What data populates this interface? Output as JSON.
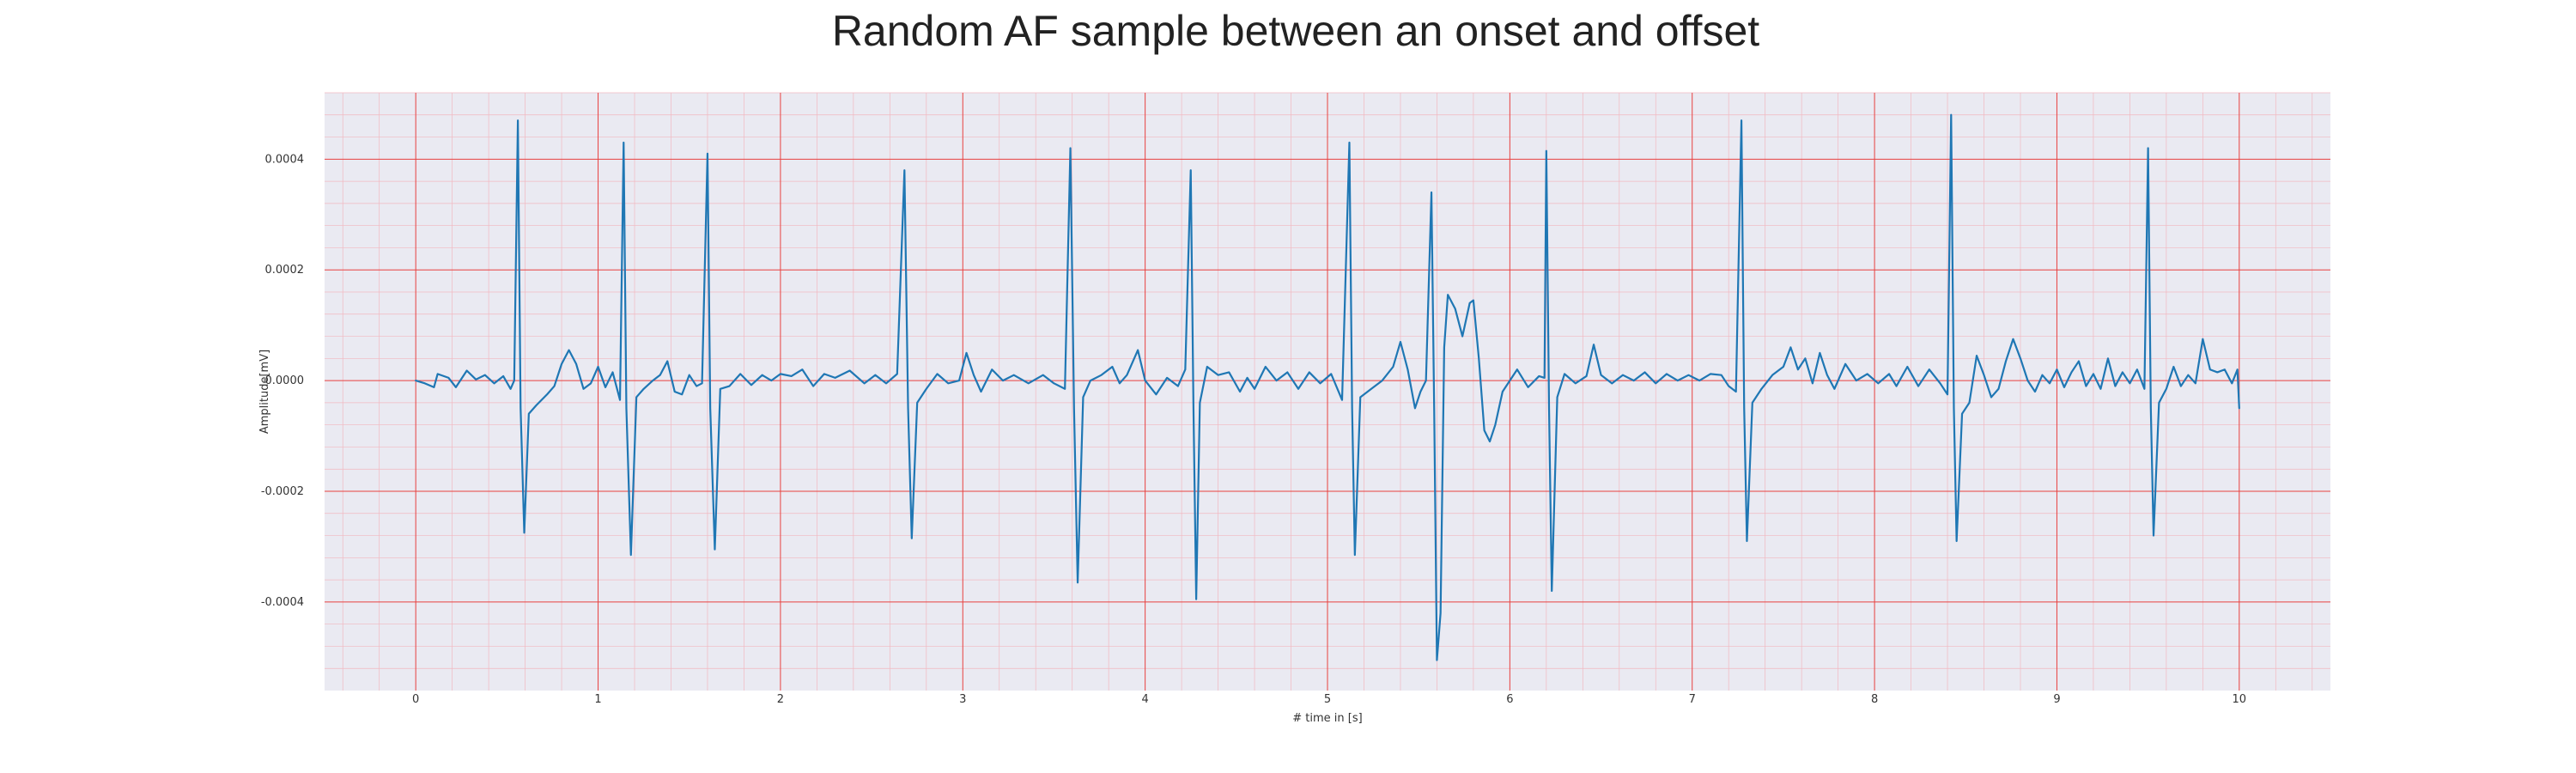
{
  "chart_data": {
    "type": "line",
    "title": "Random AF sample between an onset and offset",
    "xlabel": "# time in [s]",
    "ylabel": "Amplitude[mV]",
    "xlim": [
      -0.5,
      10.5
    ],
    "ylim": [
      -0.00056,
      0.00052
    ],
    "xticks": [
      0,
      1,
      2,
      3,
      4,
      5,
      6,
      7,
      8,
      9,
      10
    ],
    "xtick_labels": [
      "0",
      "1",
      "2",
      "3",
      "4",
      "5",
      "6",
      "7",
      "8",
      "9",
      "10"
    ],
    "yticks": [
      -0.0004,
      -0.0002,
      0.0,
      0.0002,
      0.0004
    ],
    "ytick_labels": [
      "-0.0004",
      "-0.0002",
      "0.0000",
      "0.0002",
      "0.0004"
    ],
    "grid": true,
    "grid_major_color": "#e8413f",
    "grid_minor_color": "#f2b8c0",
    "background_color": "#eaeaf2",
    "series": [
      {
        "color": "#1f77b4",
        "anchors": [
          [
            0.0,
            0.0
          ],
          [
            0.05,
            -5e-06
          ],
          [
            0.1,
            -1.2e-05
          ],
          [
            0.12,
            1.2e-05
          ],
          [
            0.18,
            5e-06
          ],
          [
            0.22,
            -1.2e-05
          ],
          [
            0.28,
            1.8e-05
          ],
          [
            0.33,
            2e-06
          ],
          [
            0.38,
            1e-05
          ],
          [
            0.43,
            -5e-06
          ],
          [
            0.48,
            8e-06
          ],
          [
            0.52,
            -1.5e-05
          ],
          [
            0.54,
            0.0
          ],
          [
            0.56,
            0.00047
          ],
          [
            0.575,
            -5e-05
          ],
          [
            0.595,
            -0.000275
          ],
          [
            0.62,
            -6e-05
          ],
          [
            0.66,
            -4.5e-05
          ],
          [
            0.72,
            -2.5e-05
          ],
          [
            0.76,
            -1e-05
          ],
          [
            0.8,
            3e-05
          ],
          [
            0.84,
            5.5e-05
          ],
          [
            0.88,
            3e-05
          ],
          [
            0.92,
            -1.5e-05
          ],
          [
            0.96,
            -5e-06
          ],
          [
            1.0,
            2.5e-05
          ],
          [
            1.04,
            -1.2e-05
          ],
          [
            1.08,
            1.5e-05
          ],
          [
            1.12,
            -3.5e-05
          ],
          [
            1.14,
            0.00043
          ],
          [
            1.155,
            -5e-05
          ],
          [
            1.18,
            -0.000315
          ],
          [
            1.21,
            -3e-05
          ],
          [
            1.25,
            -1.5e-05
          ],
          [
            1.3,
            0.0
          ],
          [
            1.34,
            1e-05
          ],
          [
            1.38,
            3.5e-05
          ],
          [
            1.42,
            -2e-05
          ],
          [
            1.46,
            -2.5e-05
          ],
          [
            1.5,
            1e-05
          ],
          [
            1.54,
            -1e-05
          ],
          [
            1.57,
            -5e-06
          ],
          [
            1.6,
            0.00041
          ],
          [
            1.615,
            -5e-05
          ],
          [
            1.64,
            -0.000305
          ],
          [
            1.67,
            -1.5e-05
          ],
          [
            1.72,
            -1e-05
          ],
          [
            1.78,
            1.2e-05
          ],
          [
            1.84,
            -8e-06
          ],
          [
            1.9,
            1e-05
          ],
          [
            1.95,
            0.0
          ],
          [
            2.0,
            1.2e-05
          ],
          [
            2.06,
            8e-06
          ],
          [
            2.12,
            2e-05
          ],
          [
            2.18,
            -1e-05
          ],
          [
            2.24,
            1.2e-05
          ],
          [
            2.3,
            5e-06
          ],
          [
            2.38,
            1.8e-05
          ],
          [
            2.46,
            -5e-06
          ],
          [
            2.52,
            1e-05
          ],
          [
            2.58,
            -5e-06
          ],
          [
            2.64,
            1.2e-05
          ],
          [
            2.68,
            0.00038
          ],
          [
            2.7,
            -5e-05
          ],
          [
            2.72,
            -0.000285
          ],
          [
            2.75,
            -4e-05
          ],
          [
            2.8,
            -1.5e-05
          ],
          [
            2.86,
            1.2e-05
          ],
          [
            2.92,
            -5e-06
          ],
          [
            2.98,
            0.0
          ],
          [
            3.02,
            5e-05
          ],
          [
            3.06,
            1e-05
          ],
          [
            3.1,
            -2e-05
          ],
          [
            3.16,
            2e-05
          ],
          [
            3.22,
            0.0
          ],
          [
            3.28,
            1e-05
          ],
          [
            3.36,
            -5e-06
          ],
          [
            3.44,
            1e-05
          ],
          [
            3.5,
            -5e-06
          ],
          [
            3.56,
            -1.5e-05
          ],
          [
            3.59,
            0.00042
          ],
          [
            3.61,
            -5e-05
          ],
          [
            3.63,
            -0.000365
          ],
          [
            3.66,
            -3e-05
          ],
          [
            3.7,
            0.0
          ],
          [
            3.76,
            1e-05
          ],
          [
            3.82,
            2.5e-05
          ],
          [
            3.86,
            -5e-06
          ],
          [
            3.9,
            1e-05
          ],
          [
            3.96,
            5.5e-05
          ],
          [
            4.0,
            0.0
          ],
          [
            4.06,
            -2.5e-05
          ],
          [
            4.12,
            5e-06
          ],
          [
            4.18,
            -1e-05
          ],
          [
            4.22,
            2e-05
          ],
          [
            4.25,
            0.00038
          ],
          [
            4.265,
            -5e-05
          ],
          [
            4.28,
            -0.000395
          ],
          [
            4.3,
            -4e-05
          ],
          [
            4.34,
            2.5e-05
          ],
          [
            4.4,
            1e-05
          ],
          [
            4.46,
            1.5e-05
          ],
          [
            4.52,
            -2e-05
          ],
          [
            4.56,
            5e-06
          ],
          [
            4.6,
            -1.5e-05
          ],
          [
            4.66,
            2.5e-05
          ],
          [
            4.72,
            0.0
          ],
          [
            4.78,
            1.5e-05
          ],
          [
            4.84,
            -1.5e-05
          ],
          [
            4.9,
            1.5e-05
          ],
          [
            4.96,
            -5e-06
          ],
          [
            5.02,
            1.2e-05
          ],
          [
            5.08,
            -3.5e-05
          ],
          [
            5.12,
            0.00043
          ],
          [
            5.135,
            -5e-05
          ],
          [
            5.15,
            -0.000315
          ],
          [
            5.18,
            -3e-05
          ],
          [
            5.24,
            -1.5e-05
          ],
          [
            5.3,
            0.0
          ],
          [
            5.36,
            2.5e-05
          ],
          [
            5.4,
            7e-05
          ],
          [
            5.44,
            2e-05
          ],
          [
            5.48,
            -5e-05
          ],
          [
            5.51,
            -2e-05
          ],
          [
            5.54,
            0.0
          ],
          [
            5.57,
            0.00034
          ],
          [
            5.585,
            -5e-05
          ],
          [
            5.6,
            -0.000505
          ],
          [
            5.62,
            -0.00042
          ],
          [
            5.64,
            6e-05
          ],
          [
            5.66,
            0.000155
          ],
          [
            5.7,
            0.00013
          ],
          [
            5.74,
            8e-05
          ],
          [
            5.78,
            0.00014
          ],
          [
            5.8,
            0.000145
          ],
          [
            5.83,
            4e-05
          ],
          [
            5.86,
            -9e-05
          ],
          [
            5.89,
            -0.00011
          ],
          [
            5.92,
            -8e-05
          ],
          [
            5.96,
            -2e-05
          ],
          [
            6.0,
            0.0
          ],
          [
            6.04,
            2e-05
          ],
          [
            6.1,
            -1.2e-05
          ],
          [
            6.16,
            8e-06
          ],
          [
            6.19,
            5e-06
          ],
          [
            6.2,
            0.000415
          ],
          [
            6.215,
            -5e-05
          ],
          [
            6.23,
            -0.00038
          ],
          [
            6.26,
            -3e-05
          ],
          [
            6.3,
            1.2e-05
          ],
          [
            6.36,
            -5e-06
          ],
          [
            6.42,
            8e-06
          ],
          [
            6.46,
            6.5e-05
          ],
          [
            6.5,
            1e-05
          ],
          [
            6.56,
            -5e-06
          ],
          [
            6.62,
            1e-05
          ],
          [
            6.68,
            0.0
          ],
          [
            6.74,
            1.5e-05
          ],
          [
            6.8,
            -5e-06
          ],
          [
            6.86,
            1.2e-05
          ],
          [
            6.92,
            0.0
          ],
          [
            6.98,
            1e-05
          ],
          [
            7.04,
            0.0
          ],
          [
            7.1,
            1.2e-05
          ],
          [
            7.16,
            1e-05
          ],
          [
            7.2,
            -1e-05
          ],
          [
            7.24,
            -2e-05
          ],
          [
            7.27,
            0.00047
          ],
          [
            7.285,
            -5e-05
          ],
          [
            7.3,
            -0.00029
          ],
          [
            7.33,
            -4e-05
          ],
          [
            7.38,
            -1.5e-05
          ],
          [
            7.44,
            1e-05
          ],
          [
            7.5,
            2.5e-05
          ],
          [
            7.54,
            6e-05
          ],
          [
            7.58,
            2e-05
          ],
          [
            7.62,
            4e-05
          ],
          [
            7.66,
            -5e-06
          ],
          [
            7.7,
            5e-05
          ],
          [
            7.74,
            1e-05
          ],
          [
            7.78,
            -1.5e-05
          ],
          [
            7.84,
            3e-05
          ],
          [
            7.9,
            0.0
          ],
          [
            7.96,
            1.2e-05
          ],
          [
            8.02,
            -5e-06
          ],
          [
            8.08,
            1.2e-05
          ],
          [
            8.12,
            -1e-05
          ],
          [
            8.18,
            2.5e-05
          ],
          [
            8.24,
            -1e-05
          ],
          [
            8.3,
            2e-05
          ],
          [
            8.36,
            -5e-06
          ],
          [
            8.4,
            -2.5e-05
          ],
          [
            8.42,
            0.00048
          ],
          [
            8.435,
            -5e-05
          ],
          [
            8.45,
            -0.00029
          ],
          [
            8.48,
            -6e-05
          ],
          [
            8.52,
            -4e-05
          ],
          [
            8.56,
            4.5e-05
          ],
          [
            8.6,
            1e-05
          ],
          [
            8.64,
            -3e-05
          ],
          [
            8.68,
            -1.5e-05
          ],
          [
            8.72,
            3.5e-05
          ],
          [
            8.76,
            7.5e-05
          ],
          [
            8.8,
            4e-05
          ],
          [
            8.84,
            0.0
          ],
          [
            8.88,
            -2e-05
          ],
          [
            8.92,
            1e-05
          ],
          [
            8.96,
            -5e-06
          ],
          [
            9.0,
            2e-05
          ],
          [
            9.04,
            -1.2e-05
          ],
          [
            9.08,
            1.5e-05
          ],
          [
            9.12,
            3.5e-05
          ],
          [
            9.16,
            -1e-05
          ],
          [
            9.2,
            1.2e-05
          ],
          [
            9.24,
            -1.5e-05
          ],
          [
            9.28,
            4e-05
          ],
          [
            9.32,
            -1e-05
          ],
          [
            9.36,
            1.5e-05
          ],
          [
            9.4,
            -5e-06
          ],
          [
            9.44,
            2e-05
          ],
          [
            9.48,
            -1.5e-05
          ],
          [
            9.5,
            0.00042
          ],
          [
            9.515,
            -5e-05
          ],
          [
            9.53,
            -0.00028
          ],
          [
            9.56,
            -4e-05
          ],
          [
            9.6,
            -1.5e-05
          ],
          [
            9.64,
            2.5e-05
          ],
          [
            9.68,
            -1e-05
          ],
          [
            9.72,
            1e-05
          ],
          [
            9.76,
            -5e-06
          ],
          [
            9.8,
            7.5e-05
          ],
          [
            9.84,
            2e-05
          ],
          [
            9.88,
            1.5e-05
          ],
          [
            9.92,
            2e-05
          ],
          [
            9.96,
            -5e-06
          ],
          [
            9.99,
            2e-05
          ],
          [
            10.0,
            -5e-05
          ]
        ]
      }
    ]
  }
}
